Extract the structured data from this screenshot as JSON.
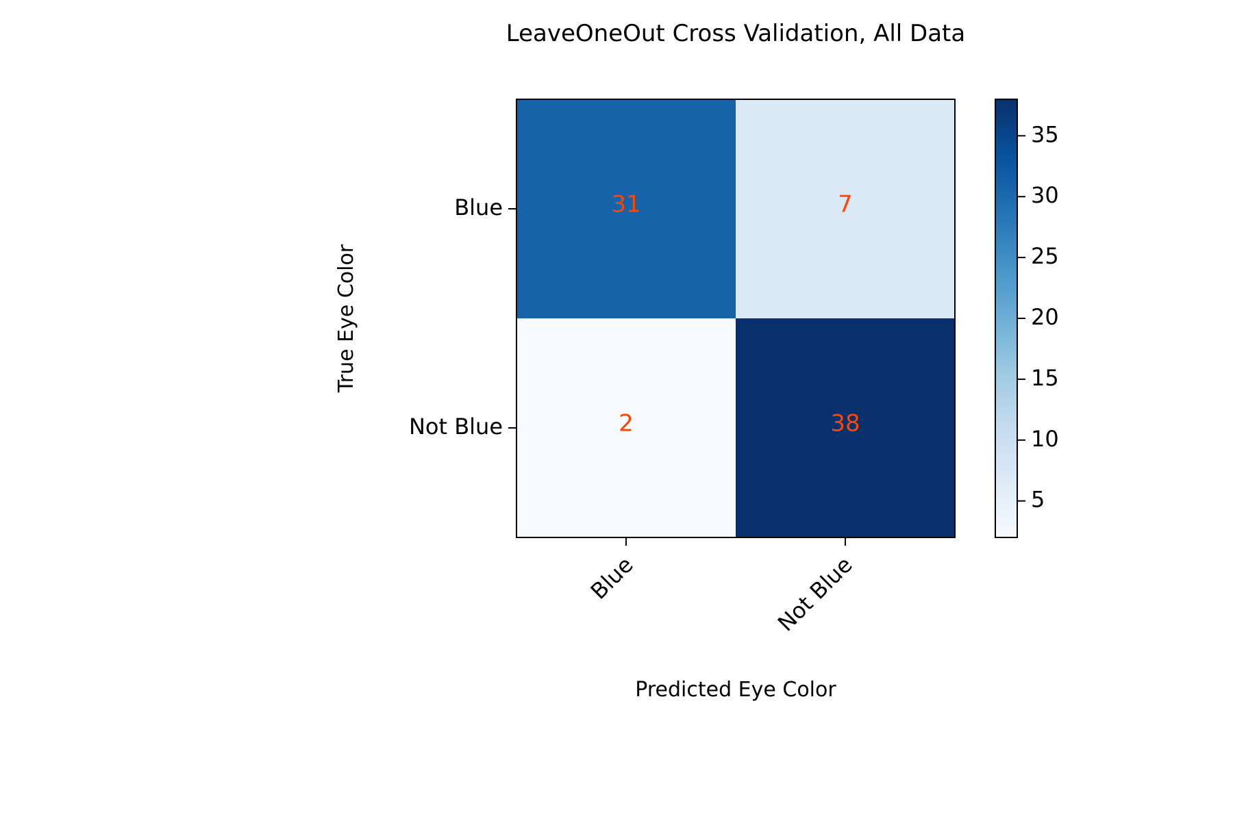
{
  "chart_data": {
    "type": "heatmap",
    "title": "LeaveOneOut Cross Validation, All Data",
    "xlabel": "Predicted Eye Color",
    "ylabel": "True Eye Color",
    "x_categories": [
      "Blue",
      "Not Blue"
    ],
    "y_categories": [
      "Blue",
      "Not Blue"
    ],
    "values": [
      [
        31,
        7
      ],
      [
        2,
        38
      ]
    ],
    "colormap": "Blues",
    "annotation_color": "#ff4500",
    "colorbar": {
      "range": [
        2,
        38
      ],
      "ticks": [
        5,
        10,
        15,
        20,
        25,
        30,
        35
      ],
      "tick_labels": [
        "5",
        "10",
        "15",
        "20",
        "25",
        "30",
        "35"
      ]
    },
    "x_tick_rotation": "45°"
  }
}
